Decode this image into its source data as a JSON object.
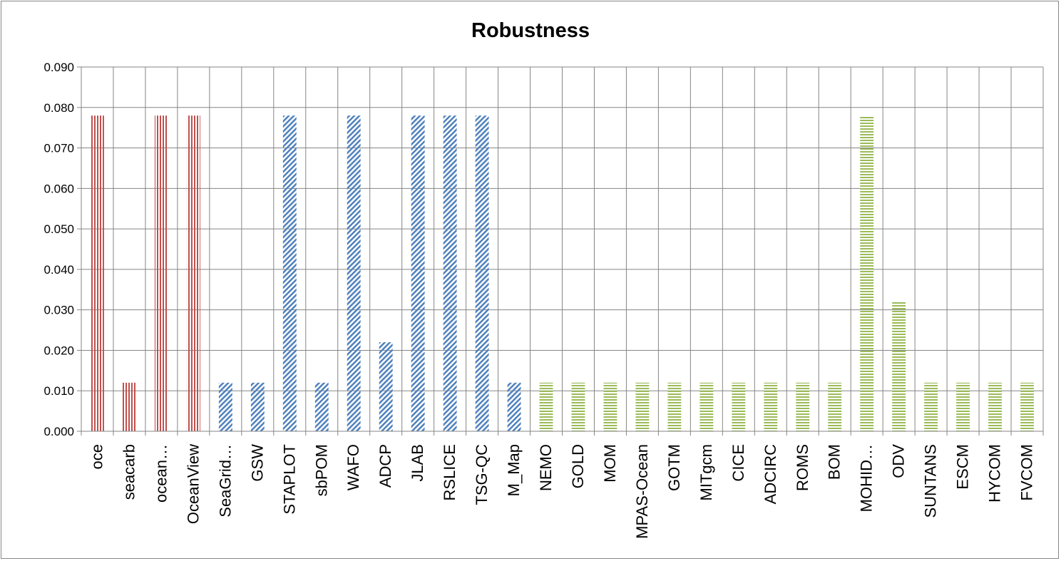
{
  "chart_data": {
    "type": "bar",
    "title": "Robustness",
    "xlabel": "",
    "ylabel": "",
    "ylim": [
      0,
      0.09
    ],
    "y_ticks": [
      "0.000",
      "0.010",
      "0.020",
      "0.030",
      "0.040",
      "0.050",
      "0.060",
      "0.070",
      "0.080",
      "0.090"
    ],
    "grid": true,
    "legend": "none",
    "categories": [
      "oce",
      "seacarb",
      "ocean…",
      "OceanView",
      "SeaGrid…",
      "GSW",
      "STAPLOT",
      "sbPOM",
      "WAFO",
      "ADCP",
      "JLAB",
      "RSLICE",
      "TSG-QC",
      "M_Map",
      "NEMO",
      "GOLD",
      "MOM",
      "MPAS-Ocean",
      "GOTM",
      "MITgcm",
      "CICE",
      "ADCIRC",
      "ROMS",
      "BOM",
      "MOHID…",
      "ODV",
      "SUNTANS",
      "ESCM",
      "HYCOM",
      "FVCOM"
    ],
    "values": [
      0.078,
      0.012,
      0.078,
      0.078,
      0.012,
      0.012,
      0.078,
      0.012,
      0.078,
      0.022,
      0.078,
      0.078,
      0.078,
      0.012,
      0.012,
      0.012,
      0.012,
      0.012,
      0.012,
      0.012,
      0.012,
      0.012,
      0.012,
      0.012,
      0.078,
      0.032,
      0.012,
      0.012,
      0.012,
      0.012
    ],
    "bar_groups": [
      "red",
      "red",
      "red",
      "red",
      "blue",
      "blue",
      "blue",
      "blue",
      "blue",
      "blue",
      "blue",
      "blue",
      "blue",
      "blue",
      "green",
      "green",
      "green",
      "green",
      "green",
      "green",
      "green",
      "green",
      "green",
      "green",
      "green",
      "green",
      "green",
      "green",
      "green",
      "green"
    ],
    "colors": {
      "red": "#c0504d",
      "blue": "#4f81bd",
      "green": "#9bbb59",
      "grid": "#868686",
      "axis": "#868686",
      "border": "#868686"
    },
    "patterns": {
      "red": "vertical-stripes",
      "blue": "diagonal-stripes",
      "green": "horizontal-stripes"
    }
  }
}
